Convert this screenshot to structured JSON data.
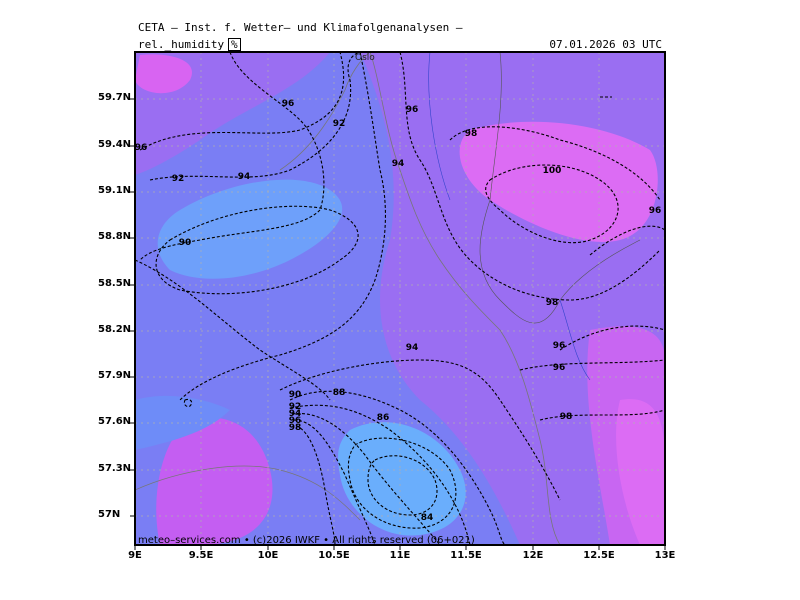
{
  "header": {
    "title": "CETA – Inst. f. Wetter– und Klimafolgenanalysen –",
    "parameter": "rel._humidity",
    "unit": "%",
    "valid_time": "07.01.2026  03 UTC"
  },
  "credit": "meteo–services.com • (c)2026 IWKF • All rights reserved (06+021)",
  "map": {
    "lat_labels": [
      "59.7N",
      "59.4N",
      "59.1N",
      "58.8N",
      "58.5N",
      "58.2N",
      "57.9N",
      "57.6N",
      "57.3N",
      "57N"
    ],
    "lon_labels": [
      "9E",
      "9.5E",
      "10E",
      "10.5E",
      "11E",
      "11.5E",
      "12E",
      "12.5E",
      "13E"
    ],
    "city": "Oslo",
    "contour_labels": [
      {
        "v": "96"
      },
      {
        "v": "92"
      },
      {
        "v": "96"
      },
      {
        "v": "98"
      },
      {
        "v": "96"
      },
      {
        "v": "92"
      },
      {
        "v": "94"
      },
      {
        "v": "94"
      },
      {
        "v": "100"
      },
      {
        "v": "96"
      },
      {
        "v": "90"
      },
      {
        "v": "98"
      },
      {
        "v": "96"
      },
      {
        "v": "96"
      },
      {
        "v": "94"
      },
      {
        "v": "90"
      },
      {
        "v": "88"
      },
      {
        "v": "92"
      },
      {
        "v": "94"
      },
      {
        "v": "96"
      },
      {
        "v": "98"
      },
      {
        "v": "86"
      },
      {
        "v": "98"
      },
      {
        "v": "84"
      }
    ],
    "colors": {
      "h84": "#6aaefc",
      "h88": "#6e8cf8",
      "h92": "#7a7ef4",
      "h96": "#9a6ef2",
      "h98": "#c05ef0",
      "h100": "#e070f4",
      "coast": "#777777",
      "grid": "#b0b0b0"
    }
  }
}
